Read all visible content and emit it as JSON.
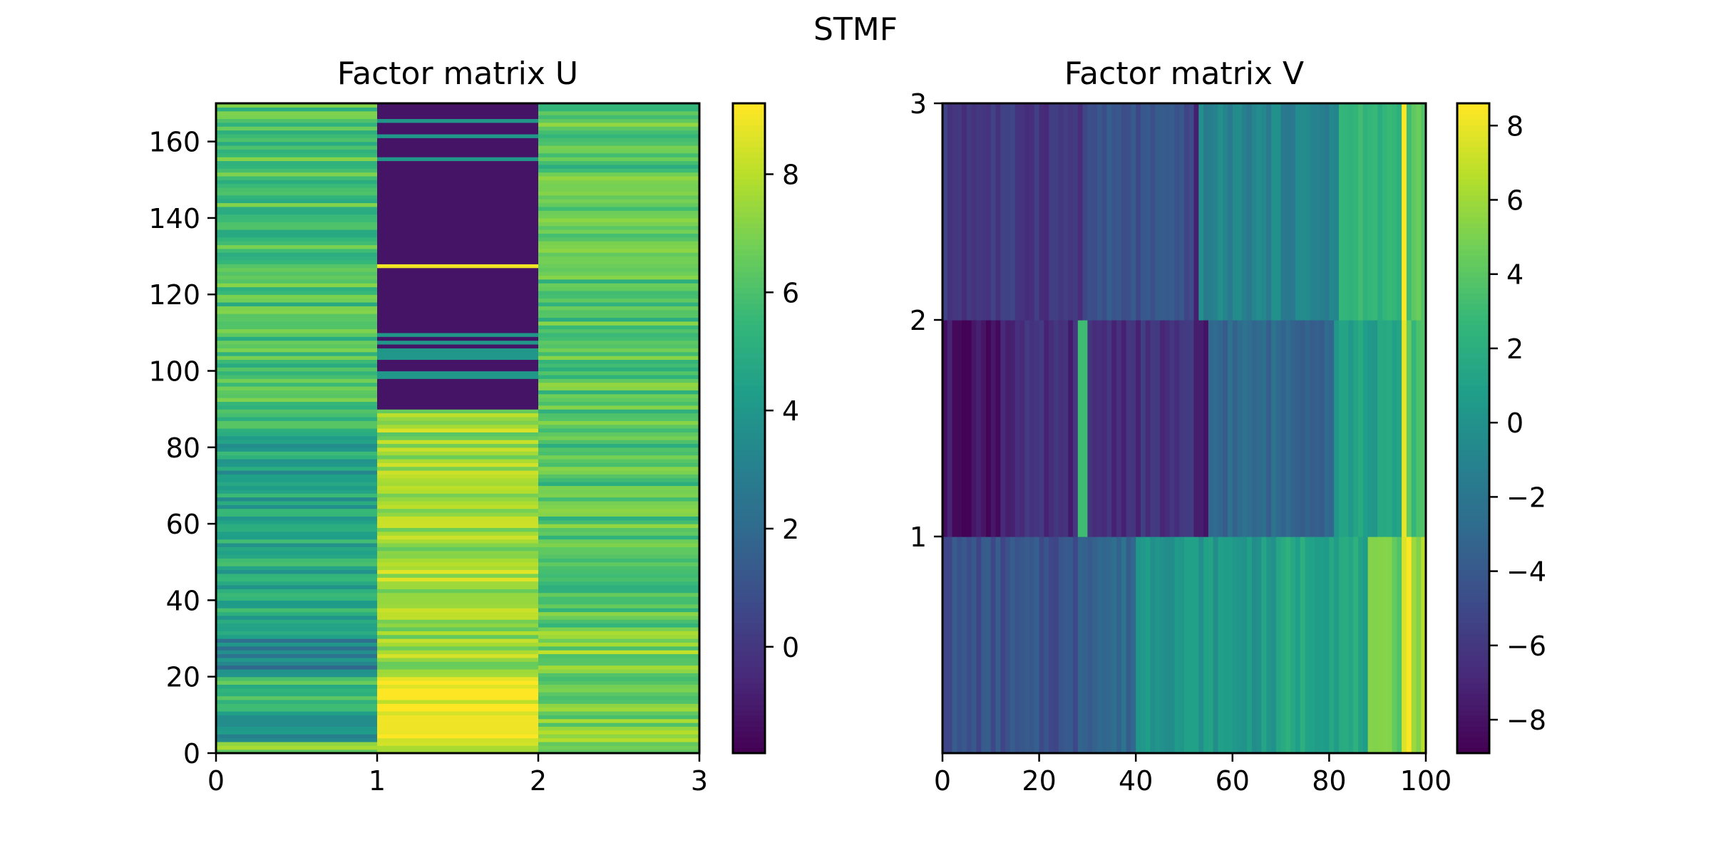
{
  "figure": {
    "title": "STMF"
  },
  "colormap": {
    "name": "viridis",
    "low": "#440154",
    "mid": "#21918c",
    "high": "#fde725"
  },
  "chart_data": [
    {
      "type": "heatmap",
      "title": "Factor matrix U",
      "x_range": [
        0,
        3
      ],
      "y_range": [
        0,
        170
      ],
      "x_ticks": [
        0,
        1,
        2,
        3
      ],
      "y_ticks": [
        0,
        20,
        40,
        60,
        80,
        100,
        120,
        140,
        160
      ],
      "x_tick_labels": [
        "0",
        "1",
        "2",
        "3"
      ],
      "y_tick_labels": [
        "0",
        "20",
        "40",
        "60",
        "80",
        "100",
        "120",
        "140",
        "160"
      ],
      "rows": 170,
      "columns": 3,
      "colorbar": {
        "range": [
          -1.8,
          9.2
        ],
        "ticks": [
          0,
          2,
          4,
          6,
          8
        ],
        "tick_labels": [
          "0",
          "2",
          "4",
          "6",
          "8"
        ]
      },
      "column_profiles": [
        {
          "column": 0,
          "description": "mostly 5-7 with bands near 2-4",
          "segments": [
            [
              0,
              3,
              7.2
            ],
            [
              3,
              10,
              3.5
            ],
            [
              10,
              20,
              5.5
            ],
            [
              20,
              30,
              3.0
            ],
            [
              30,
              60,
              4.8
            ],
            [
              60,
              85,
              4.5
            ],
            [
              85,
              170,
              6.0
            ]
          ]
        },
        {
          "column": 1,
          "description": "high ~8-9 below row 20, ~7.5 for 20-85, near -1.2 above 90",
          "segments": [
            [
              0,
              20,
              8.8
            ],
            [
              20,
              48,
              7.6
            ],
            [
              48,
              85,
              7.4
            ],
            [
              85,
              90,
              7.0
            ],
            [
              90,
              170,
              -1.2
            ]
          ]
        },
        {
          "column": 2,
          "description": "~7 below row 33, ~6-6.5 above",
          "segments": [
            [
              0,
              33,
              7.0
            ],
            [
              33,
              170,
              6.2
            ]
          ]
        }
      ]
    },
    {
      "type": "heatmap",
      "title": "Factor matrix V",
      "x_range": [
        0,
        100
      ],
      "y_range": [
        0,
        3
      ],
      "x_ticks": [
        0,
        20,
        40,
        60,
        80,
        100
      ],
      "y_ticks": [
        1,
        2,
        3
      ],
      "x_tick_labels": [
        "0",
        "20",
        "40",
        "60",
        "80",
        "100"
      ],
      "y_tick_labels": [
        "1",
        "2",
        "3"
      ],
      "rows": 3,
      "columns": 100,
      "colorbar": {
        "range": [
          -8.9,
          8.6
        ],
        "ticks": [
          -8,
          -6,
          -4,
          -2,
          0,
          2,
          4,
          6,
          8
        ],
        "tick_labels": [
          "−8",
          "−6",
          "−4",
          "−2",
          "0",
          "2",
          "4",
          "6",
          "8"
        ]
      },
      "row_profiles": [
        {
          "row": 0,
          "description": "rises from ~-5 to ~2 then ~8 at column 95-97",
          "segments": [
            [
              0,
              28,
              -4.5
            ],
            [
              28,
              40,
              -3.0
            ],
            [
              40,
              70,
              0.5
            ],
            [
              70,
              88,
              1.5
            ],
            [
              88,
              95,
              4.5
            ],
            [
              95,
              97,
              8.4
            ],
            [
              97,
              100,
              6.0
            ]
          ]
        },
        {
          "row": 1,
          "description": "~-8 on left, ~-6 middle, ~1 after column 82, ~8 at 95-96",
          "segments": [
            [
              0,
              12,
              -8.0
            ],
            [
              12,
              28,
              -6.8
            ],
            [
              28,
              30,
              2.5
            ],
            [
              30,
              52,
              -6.5
            ],
            [
              52,
              55,
              -8.0
            ],
            [
              55,
              81,
              -3.0
            ],
            [
              81,
              95,
              1.0
            ],
            [
              95,
              96,
              8.2
            ],
            [
              96,
              100,
              3.5
            ]
          ]
        },
        {
          "row": 2,
          "description": "~-6 to -4 left, ~-1 to 0 middle, ~3 right, ~8 at 95",
          "segments": [
            [
              0,
              30,
              -6.0
            ],
            [
              30,
              52,
              -4.5
            ],
            [
              52,
              53,
              -8.0
            ],
            [
              53,
              82,
              -1.0
            ],
            [
              82,
              95,
              2.5
            ],
            [
              95,
              96,
              8.3
            ],
            [
              96,
              100,
              4.0
            ]
          ]
        }
      ]
    }
  ]
}
